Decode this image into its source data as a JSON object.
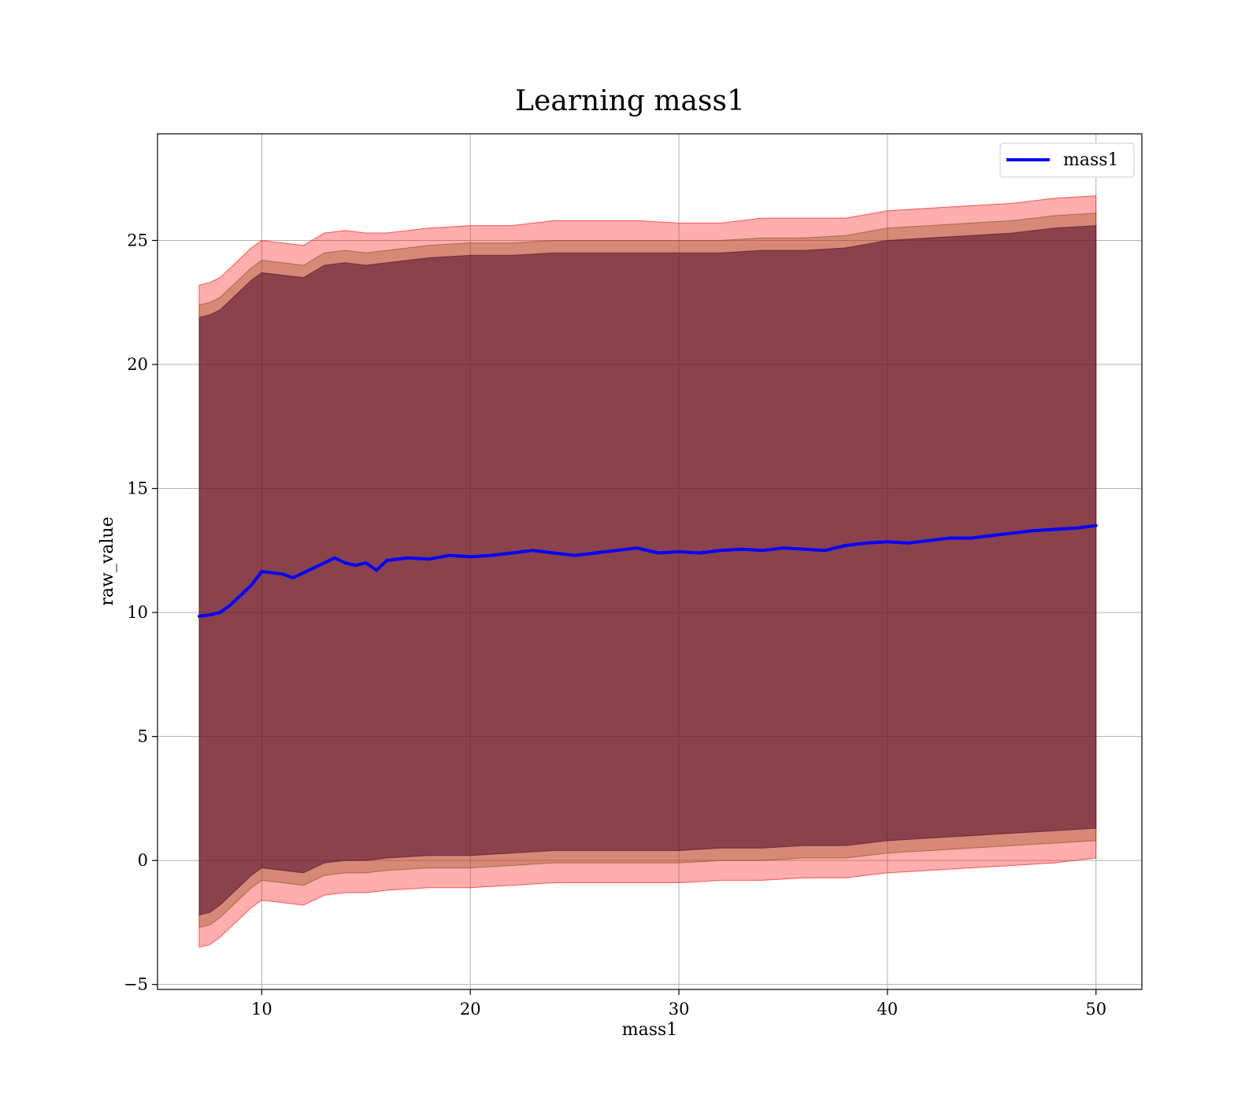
{
  "chart_data": {
    "type": "line",
    "title": "Learning mass1",
    "xlabel": "mass1",
    "ylabel": "raw_value",
    "xlim": [
      5,
      52.2
    ],
    "ylim": [
      -5.2,
      29.3
    ],
    "x_ticks": [
      10,
      20,
      30,
      40,
      50
    ],
    "x_tick_labels": [
      "10",
      "20",
      "30",
      "40",
      "50"
    ],
    "y_ticks": [
      -5,
      0,
      5,
      10,
      15,
      20,
      25
    ],
    "y_tick_labels": [
      "−5",
      "0",
      "5",
      "10",
      "15",
      "20",
      "25"
    ],
    "grid": true,
    "legend": {
      "placement": "top-right",
      "entries": [
        "mass1"
      ]
    },
    "series": [
      {
        "name": "mass1",
        "color": "#0000ff",
        "x": [
          7,
          7.5,
          8,
          8.5,
          9,
          9.5,
          10,
          10.5,
          11,
          11.5,
          12,
          12.5,
          13,
          13.5,
          14,
          14.5,
          15,
          15.5,
          16,
          17,
          18,
          19,
          20,
          21,
          22,
          23,
          24,
          25,
          26,
          27,
          28,
          29,
          30,
          31,
          32,
          33,
          34,
          35,
          36,
          37,
          38,
          39,
          40,
          41,
          42,
          43,
          44,
          45,
          46,
          47,
          48,
          49,
          50
        ],
        "y": [
          9.85,
          9.9,
          10.0,
          10.3,
          10.7,
          11.1,
          11.65,
          11.6,
          11.55,
          11.4,
          11.6,
          11.8,
          12.0,
          12.2,
          12.0,
          11.9,
          12.0,
          11.7,
          12.1,
          12.2,
          12.15,
          12.3,
          12.25,
          12.3,
          12.4,
          12.5,
          12.4,
          12.3,
          12.4,
          12.5,
          12.6,
          12.4,
          12.45,
          12.4,
          12.5,
          12.55,
          12.5,
          12.6,
          12.55,
          12.5,
          12.7,
          12.8,
          12.85,
          12.8,
          12.9,
          13.0,
          13.0,
          13.1,
          13.2,
          13.3,
          13.35,
          13.4,
          13.5
        ]
      }
    ],
    "bands": [
      {
        "color": "#ff0000",
        "opacity": 0.32,
        "x": [
          7,
          7.5,
          8,
          8.5,
          9,
          9.5,
          10,
          11,
          12,
          13,
          14,
          15,
          16,
          18,
          20,
          22,
          24,
          26,
          28,
          30,
          32,
          34,
          36,
          38,
          40,
          42,
          44,
          46,
          48,
          50
        ],
        "upper": [
          23.2,
          23.3,
          23.5,
          23.9,
          24.3,
          24.7,
          25.0,
          24.9,
          24.8,
          25.3,
          25.4,
          25.3,
          25.3,
          25.5,
          25.6,
          25.6,
          25.8,
          25.8,
          25.8,
          25.7,
          25.7,
          25.9,
          25.9,
          25.9,
          26.2,
          26.3,
          26.4,
          26.5,
          26.7,
          26.8
        ],
        "lower": [
          -3.5,
          -3.4,
          -3.1,
          -2.7,
          -2.3,
          -1.9,
          -1.6,
          -1.7,
          -1.8,
          -1.4,
          -1.3,
          -1.3,
          -1.2,
          -1.1,
          -1.1,
          -1.0,
          -0.9,
          -0.9,
          -0.9,
          -0.9,
          -0.8,
          -0.8,
          -0.7,
          -0.7,
          -0.5,
          -0.4,
          -0.3,
          -0.2,
          -0.1,
          0.1
        ]
      },
      {
        "color": "#8b4513",
        "opacity": 0.35,
        "x": [
          7,
          7.5,
          8,
          8.5,
          9,
          9.5,
          10,
          11,
          12,
          13,
          14,
          15,
          16,
          18,
          20,
          22,
          24,
          26,
          28,
          30,
          32,
          34,
          36,
          38,
          40,
          42,
          44,
          46,
          48,
          50
        ],
        "upper": [
          22.4,
          22.5,
          22.7,
          23.1,
          23.5,
          23.9,
          24.2,
          24.1,
          24.0,
          24.5,
          24.6,
          24.5,
          24.6,
          24.8,
          24.9,
          24.9,
          25.0,
          25.0,
          25.0,
          25.0,
          25.0,
          25.1,
          25.1,
          25.2,
          25.5,
          25.6,
          25.7,
          25.8,
          26.0,
          26.1
        ],
        "lower": [
          -2.7,
          -2.6,
          -2.3,
          -1.9,
          -1.5,
          -1.1,
          -0.8,
          -0.9,
          -1.0,
          -0.6,
          -0.5,
          -0.5,
          -0.4,
          -0.3,
          -0.3,
          -0.2,
          -0.1,
          -0.1,
          -0.1,
          -0.1,
          0.0,
          0.0,
          0.1,
          0.1,
          0.3,
          0.4,
          0.5,
          0.6,
          0.7,
          0.8
        ]
      },
      {
        "color": "#4b0a2a",
        "opacity": 0.55,
        "x": [
          7,
          7.5,
          8,
          8.5,
          9,
          9.5,
          10,
          11,
          12,
          13,
          14,
          15,
          16,
          18,
          20,
          22,
          24,
          26,
          28,
          30,
          32,
          34,
          36,
          38,
          40,
          42,
          44,
          46,
          48,
          50
        ],
        "upper": [
          21.9,
          22.0,
          22.2,
          22.6,
          23.0,
          23.4,
          23.7,
          23.6,
          23.5,
          24.0,
          24.1,
          24.0,
          24.1,
          24.3,
          24.4,
          24.4,
          24.5,
          24.5,
          24.5,
          24.5,
          24.5,
          24.6,
          24.6,
          24.7,
          25.0,
          25.1,
          25.2,
          25.3,
          25.5,
          25.6
        ],
        "lower": [
          -2.2,
          -2.1,
          -1.8,
          -1.4,
          -1.0,
          -0.6,
          -0.3,
          -0.4,
          -0.5,
          -0.1,
          0.0,
          0.0,
          0.1,
          0.2,
          0.2,
          0.3,
          0.4,
          0.4,
          0.4,
          0.4,
          0.5,
          0.5,
          0.6,
          0.6,
          0.8,
          0.9,
          1.0,
          1.1,
          1.2,
          1.3
        ]
      }
    ]
  }
}
